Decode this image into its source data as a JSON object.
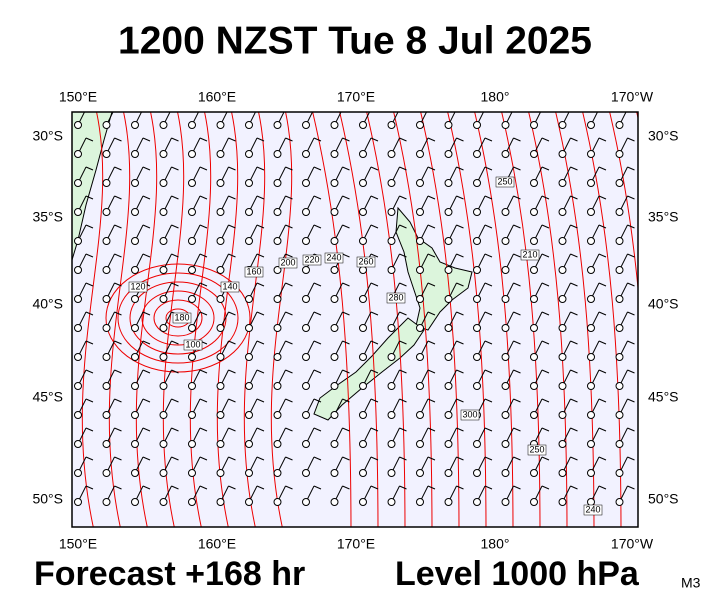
{
  "header": {
    "title": "1200 NZST Tue 8 Jul 2025"
  },
  "footer": {
    "forecast": "Forecast +168 hr",
    "level": "Level 1000 hPa",
    "model": "M3"
  },
  "map": {
    "lon_labels": [
      "150°E",
      "160°E",
      "170°E",
      "180°",
      "170°W"
    ],
    "lat_labels": [
      "30°S",
      "35°S",
      "40°S",
      "45°S",
      "50°S"
    ],
    "contour_labels": [
      "100",
      "120",
      "140",
      "160",
      "180",
      "200",
      "220",
      "240",
      "260",
      "280",
      "300",
      "250",
      "240",
      "250",
      "210"
    ]
  }
}
